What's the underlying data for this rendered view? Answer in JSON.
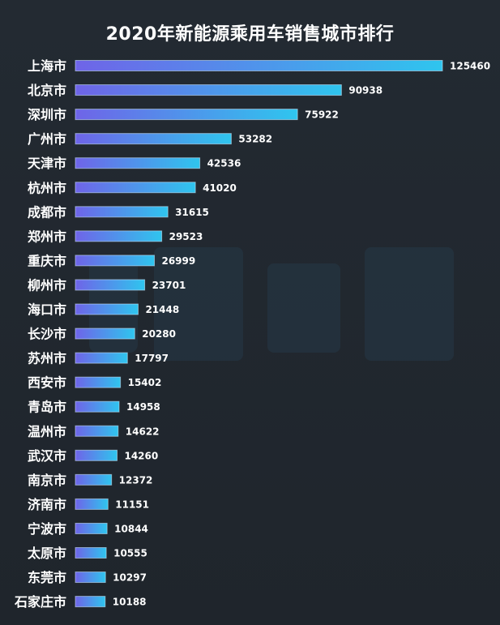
{
  "chart_data": {
    "type": "bar",
    "orientation": "horizontal",
    "title": "2020年新能源乘用车销售城市排行",
    "categories": [
      "上海市",
      "北京市",
      "深圳市",
      "广州市",
      "天津市",
      "杭州市",
      "成都市",
      "郑州市",
      "重庆市",
      "柳州市",
      "海口市",
      "长沙市",
      "苏州市",
      "西安市",
      "青岛市",
      "温州市",
      "武汉市",
      "南京市",
      "济南市",
      "宁波市",
      "太原市",
      "东莞市",
      "石家庄市"
    ],
    "values": [
      125460,
      90938,
      75922,
      53282,
      42536,
      41020,
      31615,
      29523,
      26999,
      23701,
      21448,
      20280,
      17797,
      15402,
      14958,
      14622,
      14260,
      12372,
      11151,
      10844,
      10555,
      10297,
      10188
    ],
    "xlim": [
      0,
      125460
    ],
    "grid": false,
    "legend": "none",
    "colors": {
      "background": "#222930",
      "bar_start": "#6f64e8",
      "bar_end": "#2fc5ee",
      "text": "#ffffff"
    }
  }
}
